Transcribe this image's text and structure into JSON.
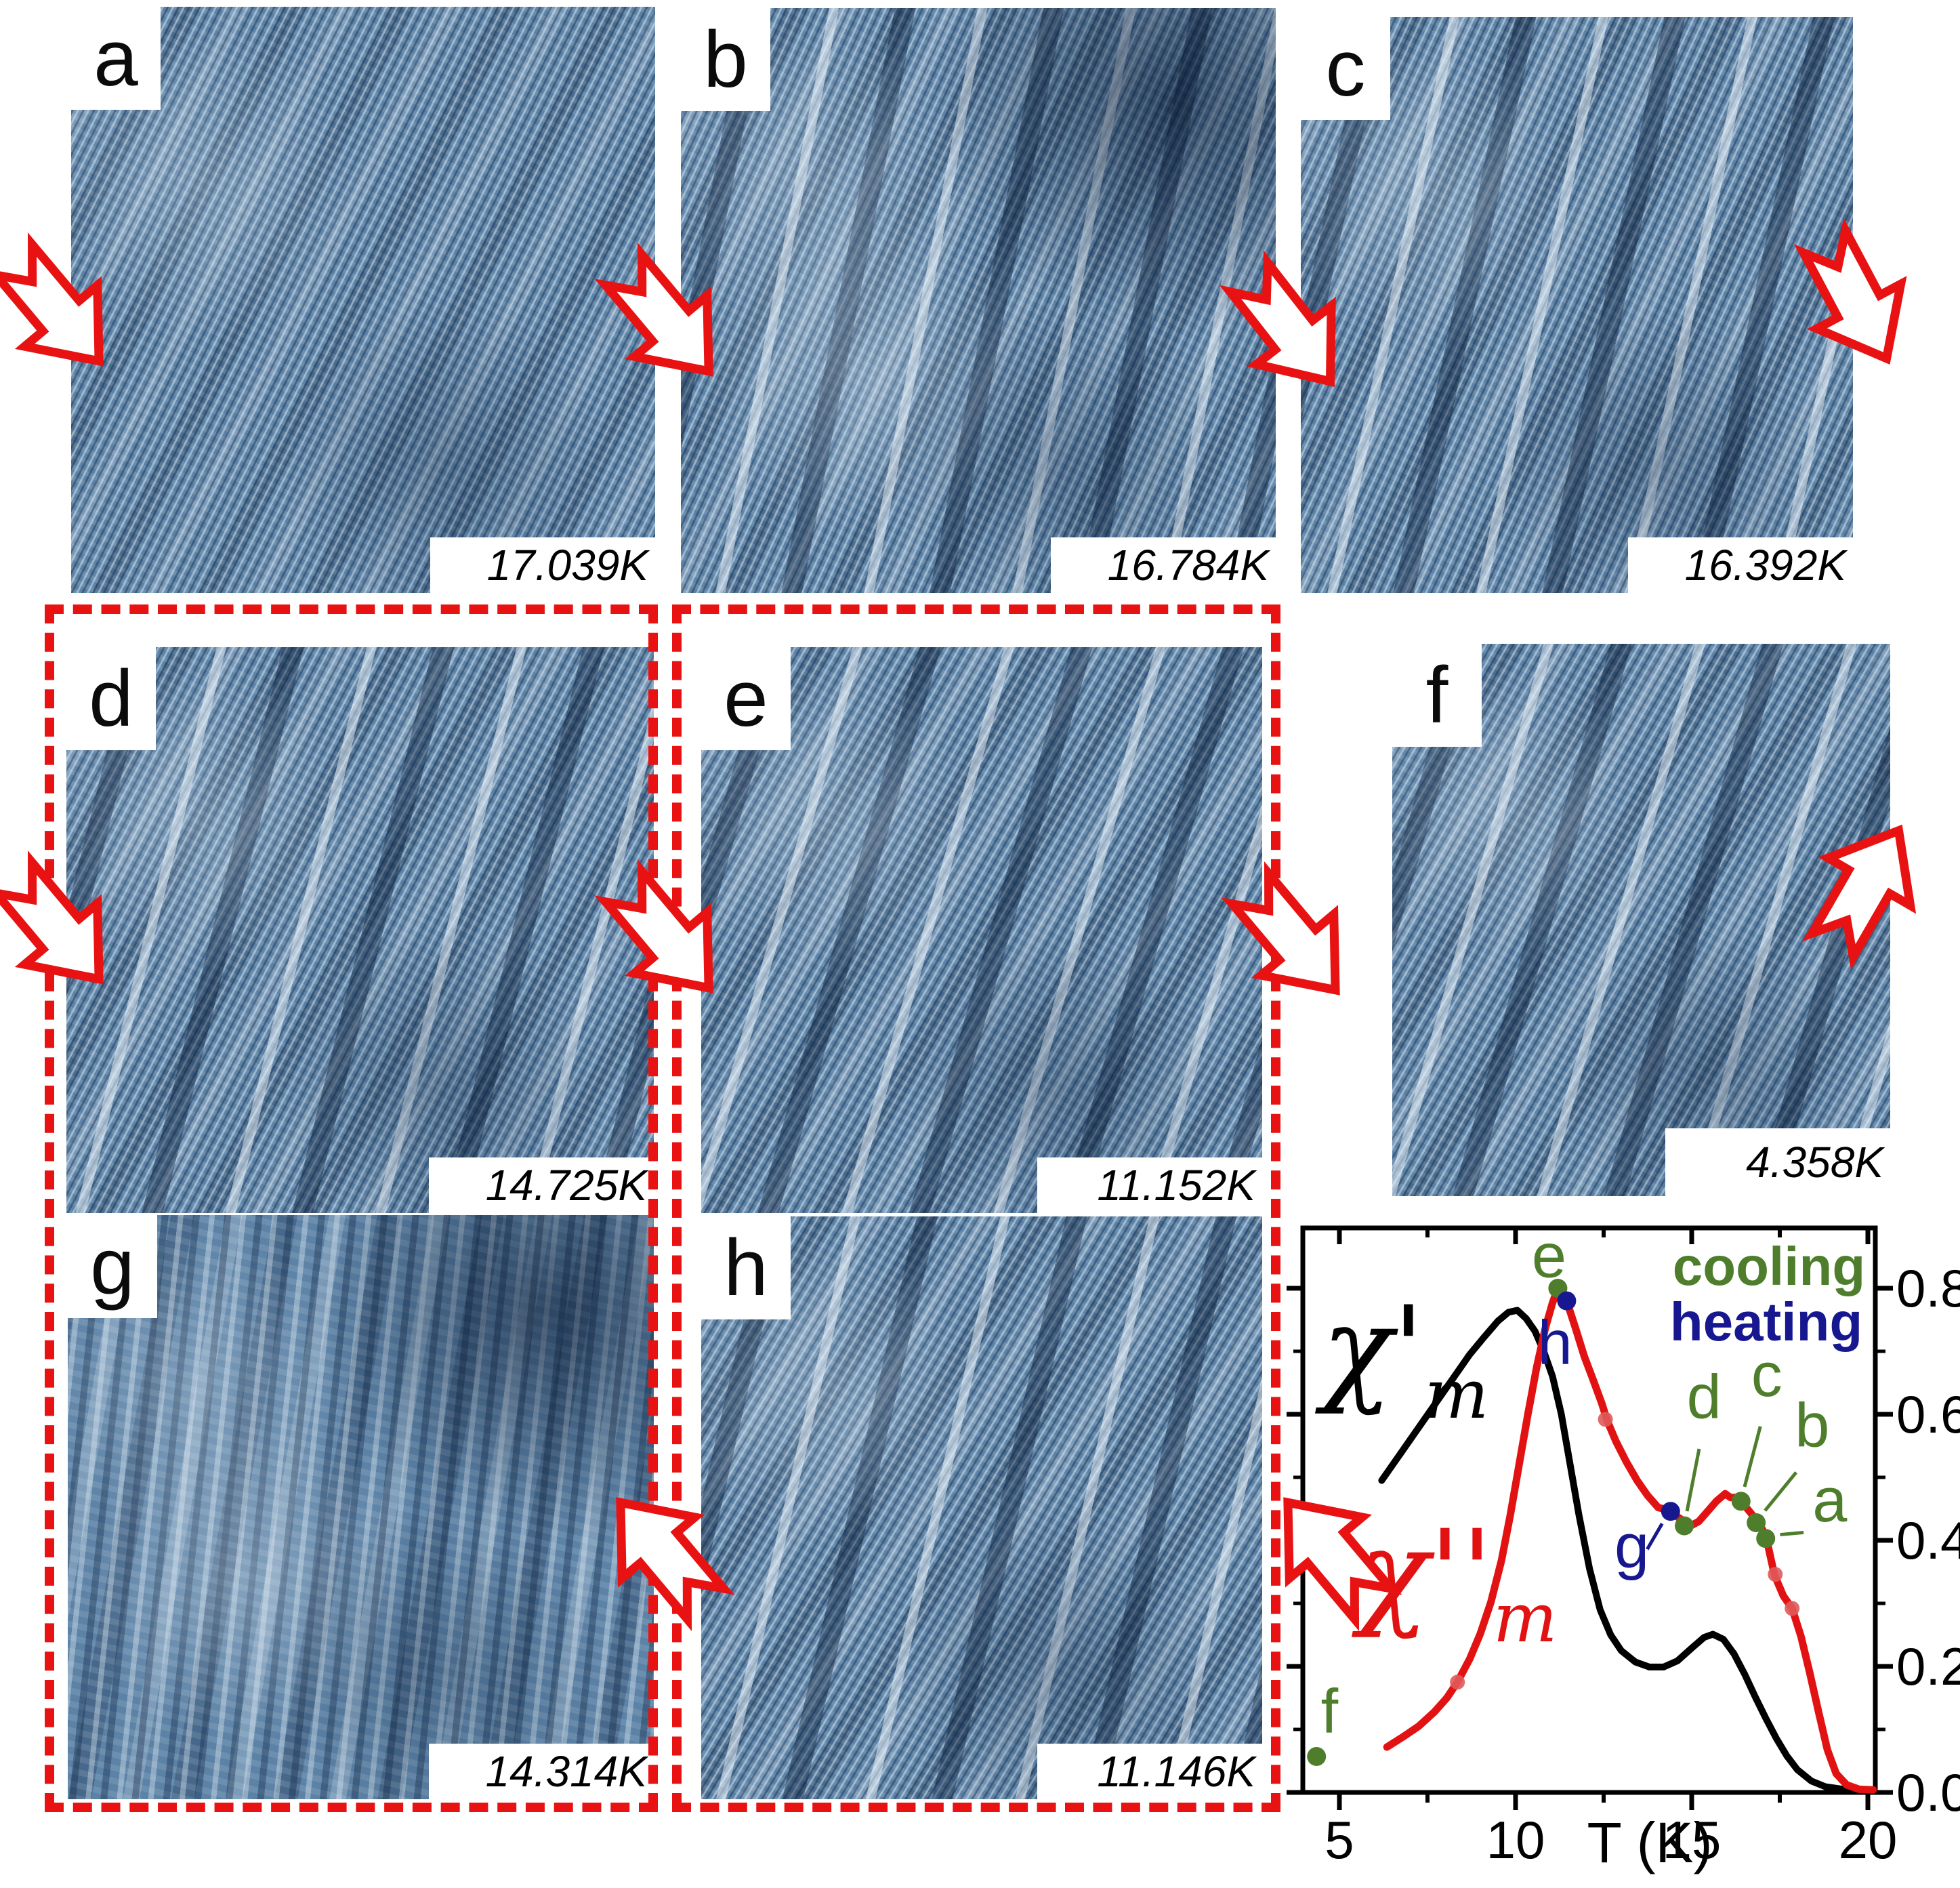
{
  "colors": {
    "accent_red": "#e81212",
    "cooling_green": "#4e7e2c",
    "heating_blue": "#17178f",
    "curve_chi_prime": "#000000",
    "curve_chi_double_prime": "#e31212",
    "stm_blue_mid": "#5c82a6"
  },
  "panels": [
    {
      "id": "a",
      "letter": "a",
      "temperature": "17.039K"
    },
    {
      "id": "b",
      "letter": "b",
      "temperature": "16.784K"
    },
    {
      "id": "c",
      "letter": "c",
      "temperature": "16.392K"
    },
    {
      "id": "d",
      "letter": "d",
      "temperature": "14.725K"
    },
    {
      "id": "e",
      "letter": "e",
      "temperature": "11.152K"
    },
    {
      "id": "f",
      "letter": "f",
      "temperature": "4.358K"
    },
    {
      "id": "g",
      "letter": "g",
      "temperature": "14.314K"
    },
    {
      "id": "h",
      "letter": "h",
      "temperature": "11.146K"
    }
  ],
  "groups": [
    {
      "name": "dashed-box-d-g",
      "panels": [
        "d",
        "g"
      ]
    },
    {
      "name": "dashed-box-e-h",
      "panels": [
        "e",
        "h"
      ]
    }
  ],
  "arrows": [
    {
      "name": "arrow-into-a",
      "direction": "down-right"
    },
    {
      "name": "arrow-a-to-b",
      "direction": "down-right"
    },
    {
      "name": "arrow-b-to-c",
      "direction": "down-right"
    },
    {
      "name": "arrow-c-exit",
      "direction": "down-right"
    },
    {
      "name": "arrow-into-d",
      "direction": "down-right"
    },
    {
      "name": "arrow-d-to-e",
      "direction": "down-right"
    },
    {
      "name": "arrow-e-to-f",
      "direction": "down-right"
    },
    {
      "name": "arrow-f-exit",
      "direction": "up-right"
    },
    {
      "name": "arrow-h-to-g",
      "direction": "up-left"
    },
    {
      "name": "arrow-chart-to-h",
      "direction": "up-left"
    }
  ],
  "chart_data": {
    "type": "line",
    "xlabel": "T (K)",
    "x_ticks": [
      5,
      10,
      15,
      20
    ],
    "x_minor_ticks": [
      7.5,
      12.5,
      17.5
    ],
    "y_ticks": [
      0.0,
      0.2,
      0.4,
      0.6,
      0.8
    ],
    "y_tick_labels": [
      "0.0",
      "0.2",
      "0.4",
      "0.6",
      "0.8"
    ],
    "xlim": [
      3.95,
      20.2
    ],
    "ylim": [
      0,
      0.9
    ],
    "grid": false,
    "legend_position": "top-right",
    "legend": [
      {
        "label": "cooling",
        "color": "#4e7e2c"
      },
      {
        "label": "heating",
        "color": "#17178f"
      }
    ],
    "series": [
      {
        "name": "chi-prime-m",
        "label": "χ'",
        "sub": "m",
        "color": "#000000",
        "points": [
          [
            6.2,
            0.495
          ],
          [
            6.7,
            0.535
          ],
          [
            7.2,
            0.575
          ],
          [
            7.7,
            0.615
          ],
          [
            8.2,
            0.655
          ],
          [
            8.7,
            0.695
          ],
          [
            9.1,
            0.722
          ],
          [
            9.5,
            0.748
          ],
          [
            9.8,
            0.762
          ],
          [
            10.05,
            0.765
          ],
          [
            10.3,
            0.752
          ],
          [
            10.55,
            0.732
          ],
          [
            10.8,
            0.7
          ],
          [
            11.05,
            0.66
          ],
          [
            11.3,
            0.6
          ],
          [
            11.55,
            0.52
          ],
          [
            11.8,
            0.44
          ],
          [
            12.1,
            0.355
          ],
          [
            12.4,
            0.29
          ],
          [
            12.7,
            0.25
          ],
          [
            13.0,
            0.225
          ],
          [
            13.4,
            0.207
          ],
          [
            13.8,
            0.199
          ],
          [
            14.2,
            0.199
          ],
          [
            14.6,
            0.209
          ],
          [
            15.0,
            0.229
          ],
          [
            15.35,
            0.246
          ],
          [
            15.6,
            0.251
          ],
          [
            15.9,
            0.243
          ],
          [
            16.2,
            0.22
          ],
          [
            16.5,
            0.188
          ],
          [
            16.8,
            0.152
          ],
          [
            17.1,
            0.118
          ],
          [
            17.4,
            0.086
          ],
          [
            17.7,
            0.058
          ],
          [
            18.0,
            0.036
          ],
          [
            18.4,
            0.018
          ],
          [
            18.8,
            0.009
          ],
          [
            19.3,
            0.005
          ],
          [
            19.8,
            0.004
          ],
          [
            20.15,
            0.004
          ]
        ]
      },
      {
        "name": "chi-double-prime-m",
        "label": "χ''",
        "sub": "m",
        "color": "#e31212",
        "points": [
          [
            6.35,
            0.072
          ],
          [
            6.8,
            0.088
          ],
          [
            7.25,
            0.105
          ],
          [
            7.7,
            0.128
          ],
          [
            8.05,
            0.15
          ],
          [
            8.35,
            0.175
          ],
          [
            8.7,
            0.212
          ],
          [
            9.0,
            0.252
          ],
          [
            9.3,
            0.302
          ],
          [
            9.6,
            0.368
          ],
          [
            9.85,
            0.44
          ],
          [
            10.1,
            0.52
          ],
          [
            10.35,
            0.6
          ],
          [
            10.6,
            0.675
          ],
          [
            10.85,
            0.738
          ],
          [
            11.05,
            0.777
          ],
          [
            11.2,
            0.8
          ],
          [
            11.45,
            0.78
          ],
          [
            11.7,
            0.737
          ],
          [
            11.95,
            0.692
          ],
          [
            12.2,
            0.655
          ],
          [
            12.45,
            0.617
          ],
          [
            12.6,
            0.59
          ],
          [
            12.85,
            0.557
          ],
          [
            13.15,
            0.524
          ],
          [
            13.45,
            0.495
          ],
          [
            13.75,
            0.471
          ],
          [
            14.05,
            0.452
          ],
          [
            14.35,
            0.448
          ],
          [
            14.6,
            0.437
          ],
          [
            14.8,
            0.43
          ],
          [
            15.0,
            0.424
          ],
          [
            15.2,
            0.43
          ],
          [
            15.45,
            0.446
          ],
          [
            15.7,
            0.462
          ],
          [
            15.95,
            0.474
          ],
          [
            16.1,
            0.468
          ],
          [
            16.3,
            0.468
          ],
          [
            16.55,
            0.452
          ],
          [
            16.8,
            0.435
          ],
          [
            17.0,
            0.418
          ],
          [
            17.1,
            0.408
          ],
          [
            17.35,
            0.345
          ],
          [
            17.6,
            0.312
          ],
          [
            17.85,
            0.292
          ],
          [
            18.1,
            0.248
          ],
          [
            18.35,
            0.19
          ],
          [
            18.6,
            0.128
          ],
          [
            18.85,
            0.068
          ],
          [
            19.1,
            0.03
          ],
          [
            19.4,
            0.012
          ],
          [
            19.75,
            0.005
          ],
          [
            20.15,
            0.004
          ]
        ]
      }
    ],
    "marked_points": [
      {
        "label": "a",
        "branch": "cooling",
        "T": 17.1,
        "chi": 0.403,
        "label_T": 18.92,
        "label_chi": 0.43,
        "leader": true
      },
      {
        "label": "b",
        "branch": "cooling",
        "T": 16.83,
        "chi": 0.428,
        "label_T": 18.42,
        "label_chi": 0.549,
        "leader": true
      },
      {
        "label": "c",
        "branch": "cooling",
        "T": 16.4,
        "chi": 0.462,
        "label_T": 17.13,
        "label_chi": 0.629,
        "leader": true
      },
      {
        "label": "d",
        "branch": "cooling",
        "T": 14.79,
        "chi": 0.423,
        "label_T": 15.35,
        "label_chi": 0.594,
        "leader": true
      },
      {
        "label": "e",
        "branch": "cooling",
        "T": 11.2,
        "chi": 0.8,
        "label_T": 10.95,
        "label_chi": 0.818,
        "leader": false
      },
      {
        "label": "f",
        "branch": "cooling",
        "T": 4.35,
        "chi": 0.057,
        "label_T": 4.72,
        "label_chi": 0.095,
        "leader": false
      },
      {
        "label": "g",
        "branch": "heating",
        "T": 14.4,
        "chi": 0.446,
        "label_T": 13.3,
        "label_chi": 0.357,
        "leader": true
      },
      {
        "label": "h",
        "branch": "heating",
        "T": 11.45,
        "chi": 0.78,
        "label_T": 11.12,
        "label_chi": 0.68,
        "leader": false
      }
    ],
    "trace_markers": [
      [
        8.35,
        0.175
      ],
      [
        12.55,
        0.592
      ],
      [
        17.37,
        0.346
      ],
      [
        17.85,
        0.292
      ]
    ]
  }
}
